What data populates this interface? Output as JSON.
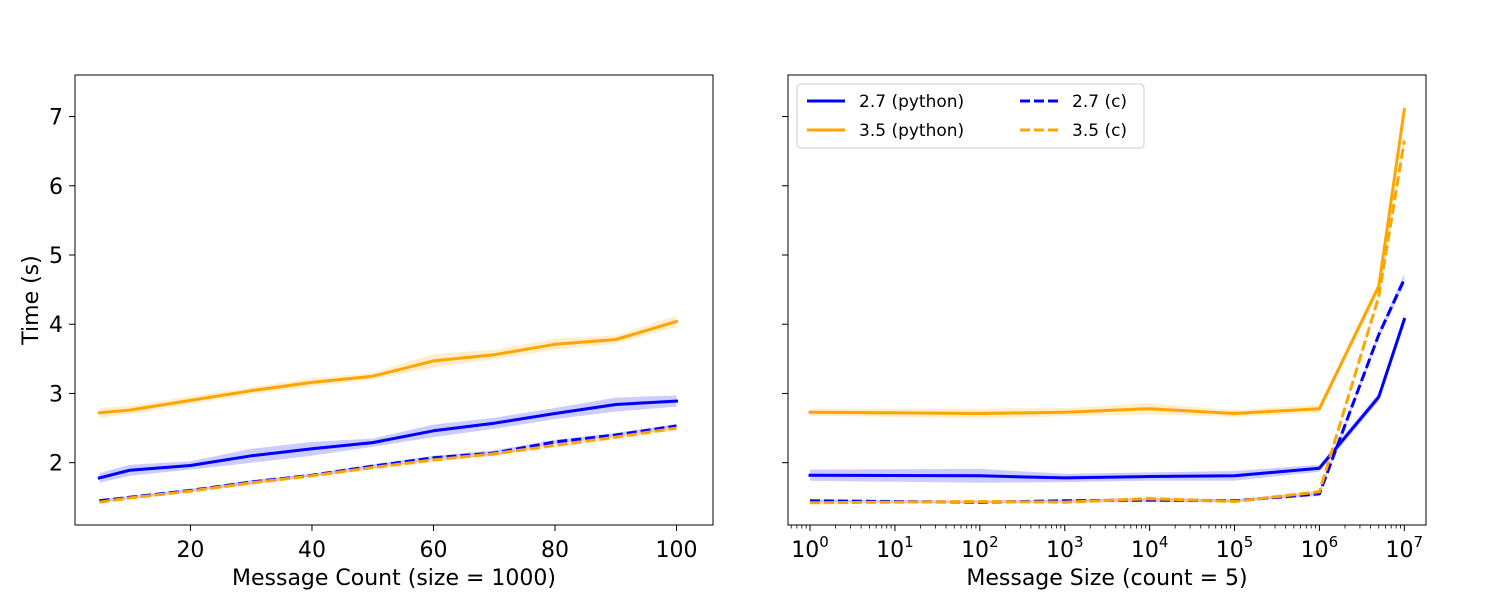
{
  "chart_data": [
    {
      "type": "line",
      "xlabel": "Message Count (size = 1000)",
      "ylabel": "Time (s)",
      "x_scale": "linear",
      "xlim": [
        1,
        106
      ],
      "ylim": [
        1.1,
        7.6
      ],
      "xticks": [
        20,
        40,
        60,
        80,
        100
      ],
      "yticks": [
        2,
        3,
        4,
        5,
        6,
        7
      ],
      "grid": false,
      "legend": "none",
      "x": [
        5,
        10,
        20,
        30,
        40,
        50,
        60,
        70,
        80,
        90,
        100
      ],
      "series": [
        {
          "name": "2.7 (python)",
          "color": "#0000ff",
          "dash": "solid",
          "values": [
            1.78,
            1.89,
            1.96,
            2.1,
            2.2,
            2.29,
            2.46,
            2.57,
            2.71,
            2.84,
            2.89
          ],
          "band": [
            0.07,
            0.08,
            0.06,
            0.1,
            0.1,
            0.06,
            0.09,
            0.08,
            0.08,
            0.1,
            0.08
          ]
        },
        {
          "name": "3.5 (python)",
          "color": "#ffa500",
          "dash": "solid",
          "values": [
            2.72,
            2.76,
            2.9,
            3.04,
            3.16,
            3.25,
            3.47,
            3.56,
            3.71,
            3.78,
            4.04
          ],
          "band": [
            0.07,
            0.06,
            0.06,
            0.05,
            0.06,
            0.05,
            0.1,
            0.07,
            0.08,
            0.06,
            0.08
          ]
        },
        {
          "name": "2.7 (c)",
          "color": "#0000ff",
          "dash": "dashed",
          "values": [
            1.45,
            1.5,
            1.6,
            1.72,
            1.82,
            1.95,
            2.07,
            2.14,
            2.3,
            2.4,
            2.53
          ],
          "band": [
            0.02,
            0.02,
            0.02,
            0.03,
            0.02,
            0.03,
            0.03,
            0.04,
            0.03,
            0.03,
            0.03
          ]
        },
        {
          "name": "3.5 (c)",
          "color": "#ffa500",
          "dash": "dashed",
          "values": [
            1.43,
            1.49,
            1.59,
            1.71,
            1.81,
            1.93,
            2.04,
            2.13,
            2.25,
            2.37,
            2.5
          ],
          "band": [
            0.02,
            0.02,
            0.02,
            0.03,
            0.02,
            0.03,
            0.03,
            0.03,
            0.03,
            0.03,
            0.03
          ]
        }
      ]
    },
    {
      "type": "line",
      "xlabel": "Message Size (count = 5)",
      "ylabel": "",
      "x_scale": "log",
      "xlim": [
        0.55,
        18000000
      ],
      "ylim": [
        1.1,
        7.6
      ],
      "xticks": [
        1,
        10,
        100,
        1000,
        10000,
        100000,
        1000000,
        10000000
      ],
      "xtick_exponents": [
        "0",
        "1",
        "2",
        "3",
        "4",
        "5",
        "6",
        "7"
      ],
      "grid": false,
      "legend": "top-left",
      "legend_ncol": 2,
      "x": [
        1,
        100,
        1000,
        10000,
        100000,
        1000000,
        5000000,
        10000000
      ],
      "series": [
        {
          "name": "2.7 (python)",
          "color": "#0000ff",
          "dash": "solid",
          "values": [
            1.82,
            1.81,
            1.78,
            1.8,
            1.81,
            1.92,
            2.95,
            4.07
          ],
          "band": [
            0.08,
            0.1,
            0.06,
            0.06,
            0.07,
            0.05,
            0.06,
            0.08
          ]
        },
        {
          "name": "3.5 (python)",
          "color": "#ffa500",
          "dash": "solid",
          "values": [
            2.73,
            2.71,
            2.73,
            2.78,
            2.71,
            2.78,
            4.55,
            7.1
          ],
          "band": [
            0.05,
            0.07,
            0.06,
            0.08,
            0.05,
            0.06,
            0.06,
            0.12
          ]
        },
        {
          "name": "2.7 (c)",
          "color": "#0000ff",
          "dash": "dashed",
          "values": [
            1.45,
            1.43,
            1.45,
            1.46,
            1.45,
            1.55,
            3.85,
            4.65
          ],
          "band": [
            0.02,
            0.02,
            0.02,
            0.03,
            0.02,
            0.03,
            0.05,
            0.08
          ]
        },
        {
          "name": "3.5 (c)",
          "color": "#ffa500",
          "dash": "dashed",
          "values": [
            1.42,
            1.44,
            1.43,
            1.48,
            1.44,
            1.58,
            4.4,
            6.65
          ],
          "band": [
            0.02,
            0.02,
            0.02,
            0.04,
            0.02,
            0.03,
            0.05,
            0.1
          ]
        }
      ]
    }
  ]
}
